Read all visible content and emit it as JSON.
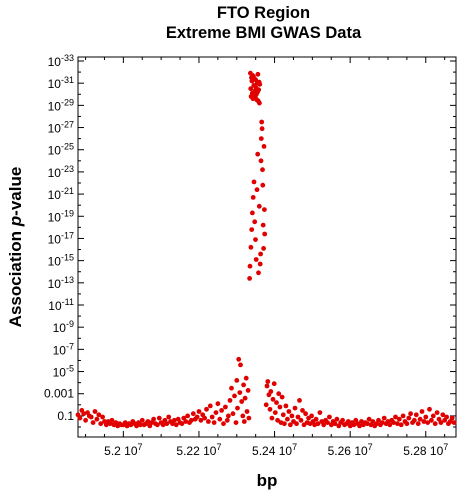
{
  "chart_data": {
    "type": "scatter",
    "title": "FTO Region",
    "subtitle": "Extreme BMI GWAS Data",
    "xlabel": "bp",
    "ylabel_main": "Association ",
    "ylabel_italic": "p",
    "ylabel_tail": "-value",
    "y_scale": "log",
    "xlim": [
      51880000,
      52880000
    ],
    "ylim_exponent": [
      -33,
      0
    ],
    "x_ticks": [
      {
        "value": 52000000,
        "mantissa": "5.2",
        "exp": "7"
      },
      {
        "value": 52200000,
        "mantissa": "5.22",
        "exp": "7"
      },
      {
        "value": 52400000,
        "mantissa": "5.24",
        "exp": "7"
      },
      {
        "value": 52600000,
        "mantissa": "5.26",
        "exp": "7"
      },
      {
        "value": 52800000,
        "mantissa": "5.28",
        "exp": "7"
      }
    ],
    "y_ticks": [
      {
        "exp": -33,
        "label": "10",
        "sup": "-33"
      },
      {
        "exp": -31,
        "label": "10",
        "sup": "-31"
      },
      {
        "exp": -29,
        "label": "10",
        "sup": "-29"
      },
      {
        "exp": -27,
        "label": "10",
        "sup": "-27"
      },
      {
        "exp": -25,
        "label": "10",
        "sup": "-25"
      },
      {
        "exp": -23,
        "label": "10",
        "sup": "-23"
      },
      {
        "exp": -21,
        "label": "10",
        "sup": "-21"
      },
      {
        "exp": -19,
        "label": "10",
        "sup": "-19"
      },
      {
        "exp": -17,
        "label": "10",
        "sup": "-17"
      },
      {
        "exp": -15,
        "label": "10",
        "sup": "-15"
      },
      {
        "exp": -13,
        "label": "10",
        "sup": "-13"
      },
      {
        "exp": -11,
        "label": "10",
        "sup": "-11"
      },
      {
        "exp": -9,
        "label": "10",
        "sup": "-9"
      },
      {
        "exp": -7,
        "label": "10",
        "sup": "-7"
      },
      {
        "exp": -5,
        "label": "10",
        "sup": "-5"
      },
      {
        "exp": -3,
        "label": "0.001",
        "sup": ""
      },
      {
        "exp": -1,
        "label": "0.1",
        "sup": ""
      }
    ],
    "point_color": "#e00000",
    "grid": false,
    "series": [
      {
        "points": [
          [
            51880000,
            -1.1
          ],
          [
            51885000,
            -0.8
          ],
          [
            51890000,
            -1.5
          ],
          [
            51895000,
            -1.2
          ],
          [
            51900000,
            -0.6
          ],
          [
            51905000,
            -1.3
          ],
          [
            51910000,
            -1.0
          ],
          [
            51915000,
            -0.9
          ],
          [
            51920000,
            -0.4
          ],
          [
            51925000,
            -1.4
          ],
          [
            51930000,
            -0.7
          ],
          [
            51935000,
            -1.1
          ],
          [
            51940000,
            -0.3
          ],
          [
            51945000,
            -0.9
          ],
          [
            51950000,
            -0.5
          ],
          [
            51955000,
            -0.2
          ],
          [
            51960000,
            -0.5
          ],
          [
            51965000,
            -0.3
          ],
          [
            51970000,
            -0.6
          ],
          [
            51975000,
            -0.2
          ],
          [
            51980000,
            -0.4
          ],
          [
            51985000,
            -0.1
          ],
          [
            51990000,
            -0.3
          ],
          [
            51995000,
            -0.2
          ],
          [
            52000000,
            -0.2
          ],
          [
            52005000,
            -0.4
          ],
          [
            52010000,
            -0.1
          ],
          [
            52015000,
            -0.3
          ],
          [
            52020000,
            -0.2
          ],
          [
            52025000,
            -0.5
          ],
          [
            52030000,
            -0.3
          ],
          [
            52035000,
            -0.1
          ],
          [
            52040000,
            -0.4
          ],
          [
            52045000,
            -0.2
          ],
          [
            52050000,
            -0.6
          ],
          [
            52055000,
            -0.2
          ],
          [
            52060000,
            -0.3
          ],
          [
            52065000,
            -0.5
          ],
          [
            52070000,
            -0.1
          ],
          [
            52075000,
            -0.4
          ],
          [
            52080000,
            -0.7
          ],
          [
            52085000,
            -0.3
          ],
          [
            52090000,
            -0.2
          ],
          [
            52095000,
            -0.8
          ],
          [
            52100000,
            -0.4
          ],
          [
            52105000,
            -0.2
          ],
          [
            52110000,
            -0.6
          ],
          [
            52115000,
            -0.3
          ],
          [
            52120000,
            -0.9
          ],
          [
            52125000,
            -0.5
          ],
          [
            52130000,
            -0.3
          ],
          [
            52135000,
            -0.6
          ],
          [
            52140000,
            -0.2
          ],
          [
            52145000,
            -0.7
          ],
          [
            52150000,
            -0.4
          ],
          [
            52155000,
            -0.3
          ],
          [
            52160000,
            -0.8
          ],
          [
            52165000,
            -0.5
          ],
          [
            52170000,
            -1.0
          ],
          [
            52175000,
            -0.4
          ],
          [
            52180000,
            -0.6
          ],
          [
            52185000,
            -1.2
          ],
          [
            52190000,
            -0.7
          ],
          [
            52195000,
            -0.9
          ],
          [
            52200000,
            -1.4
          ],
          [
            52205000,
            -0.6
          ],
          [
            52210000,
            -1.1
          ],
          [
            52215000,
            -0.8
          ],
          [
            52220000,
            -1.6
          ],
          [
            52225000,
            -0.5
          ],
          [
            52230000,
            -1.9
          ],
          [
            52235000,
            -0.9
          ],
          [
            52240000,
            -0.4
          ],
          [
            52245000,
            -1.3
          ],
          [
            52250000,
            -2.1
          ],
          [
            52255000,
            -0.7
          ],
          [
            52260000,
            -1.5
          ],
          [
            52265000,
            -0.3
          ],
          [
            52270000,
            -1.8
          ],
          [
            52275000,
            -0.6
          ],
          [
            52278000,
            -1.0
          ],
          [
            52282000,
            -2.4
          ],
          [
            52286000,
            -3.5
          ],
          [
            52290000,
            -1.2
          ],
          [
            52294000,
            -2.8
          ],
          [
            52298000,
            -0.4
          ],
          [
            52300000,
            -4.2
          ],
          [
            52302000,
            -1.7
          ],
          [
            52305000,
            -6.1
          ],
          [
            52308000,
            -3.1
          ],
          [
            52310000,
            -5.6
          ],
          [
            52313000,
            -2.3
          ],
          [
            52316000,
            -1.0
          ],
          [
            52318000,
            -3.8
          ],
          [
            52320000,
            -0.5
          ],
          [
            52322000,
            -2.6
          ],
          [
            52325000,
            -4.4
          ],
          [
            52327000,
            -1.4
          ],
          [
            52330000,
            -3.3
          ],
          [
            52332000,
            -0.8
          ],
          [
            52334000,
            -13.4
          ],
          [
            52336000,
            -31.9
          ],
          [
            52337000,
            -30.5
          ],
          [
            52338000,
            -29.8
          ],
          [
            52339000,
            -31.5
          ],
          [
            52340000,
            -31.2
          ],
          [
            52341000,
            -30.1
          ],
          [
            52342000,
            -31.7
          ],
          [
            52343000,
            -29.6
          ],
          [
            52344000,
            -31.6
          ],
          [
            52345000,
            -30.8
          ],
          [
            52346000,
            -29.9
          ],
          [
            52347000,
            -31.4
          ],
          [
            52348000,
            -30.3
          ],
          [
            52349000,
            -29.7
          ],
          [
            52350000,
            -31.3
          ],
          [
            52351000,
            -30.6
          ],
          [
            52352000,
            -30.0
          ],
          [
            52353000,
            -29.5
          ],
          [
            52354000,
            -31.0
          ],
          [
            52355000,
            -30.2
          ],
          [
            52356000,
            -31.8
          ],
          [
            52357000,
            -29.4
          ],
          [
            52358000,
            -30.4
          ],
          [
            52359000,
            -31.1
          ],
          [
            52360000,
            -29.2
          ],
          [
            52361000,
            -30.9
          ],
          [
            52335000,
            -14.5
          ],
          [
            52337500,
            -16.2
          ],
          [
            52339500,
            -17.8
          ],
          [
            52341500,
            -19.3
          ],
          [
            52343500,
            -20.7
          ],
          [
            52345500,
            -22.1
          ],
          [
            52347500,
            -18.5
          ],
          [
            52349500,
            -16.9
          ],
          [
            52351500,
            -15.1
          ],
          [
            52353500,
            -21.4
          ],
          [
            52355500,
            -24.6
          ],
          [
            52357500,
            -13.9
          ],
          [
            52359500,
            -19.9
          ],
          [
            52362000,
            -14.7
          ],
          [
            52363000,
            -15.6
          ],
          [
            52364000,
            -24.0
          ],
          [
            52365000,
            -26.0
          ],
          [
            52366000,
            -27.5
          ],
          [
            52367000,
            -26.9
          ],
          [
            52368000,
            -23.2
          ],
          [
            52369000,
            -21.8
          ],
          [
            52370000,
            -18.2
          ],
          [
            52371000,
            -16.1
          ],
          [
            52372000,
            -25.3
          ],
          [
            52373000,
            -19.6
          ],
          [
            52374000,
            -17.4
          ],
          [
            52378000,
            -2.0
          ],
          [
            52380000,
            -3.7
          ],
          [
            52382000,
            -4.1
          ],
          [
            52385000,
            -2.9
          ],
          [
            52388000,
            -1.6
          ],
          [
            52390000,
            -3.2
          ],
          [
            52393000,
            -0.8
          ],
          [
            52396000,
            -2.5
          ],
          [
            52399000,
            -3.9
          ],
          [
            52402000,
            -1.3
          ],
          [
            52405000,
            -2.2
          ],
          [
            52408000,
            -0.6
          ],
          [
            52411000,
            -3.0
          ],
          [
            52414000,
            -1.8
          ],
          [
            52417000,
            -0.4
          ],
          [
            52420000,
            -2.7
          ],
          [
            52423000,
            -1.1
          ],
          [
            52426000,
            -0.3
          ],
          [
            52430000,
            -1.9
          ],
          [
            52434000,
            -0.7
          ],
          [
            52438000,
            -1.4
          ],
          [
            52442000,
            -0.2
          ],
          [
            52446000,
            -1.0
          ],
          [
            52450000,
            -0.5
          ],
          [
            52454000,
            -1.7
          ],
          [
            52458000,
            -0.3
          ],
          [
            52462000,
            -0.9
          ],
          [
            52466000,
            -2.4
          ],
          [
            52470000,
            -0.6
          ],
          [
            52474000,
            -1.5
          ],
          [
            52478000,
            -0.2
          ],
          [
            52482000,
            -1.2
          ],
          [
            52486000,
            -0.4
          ],
          [
            52490000,
            -0.8
          ],
          [
            52494000,
            -0.3
          ],
          [
            52498000,
            -1.0
          ],
          [
            52502000,
            -0.5
          ],
          [
            52506000,
            -0.2
          ],
          [
            52510000,
            -0.7
          ],
          [
            52515000,
            -0.3
          ],
          [
            52520000,
            -1.3
          ],
          [
            52525000,
            -0.5
          ],
          [
            52530000,
            -0.2
          ],
          [
            52535000,
            -0.6
          ],
          [
            52540000,
            -0.4
          ],
          [
            52545000,
            -0.9
          ],
          [
            52550000,
            -0.2
          ],
          [
            52555000,
            -0.5
          ],
          [
            52560000,
            -0.3
          ],
          [
            52565000,
            -0.7
          ],
          [
            52570000,
            -0.1
          ],
          [
            52575000,
            -0.4
          ],
          [
            52580000,
            -0.6
          ],
          [
            52585000,
            -0.2
          ],
          [
            52590000,
            -0.3
          ],
          [
            52595000,
            -0.5
          ],
          [
            52600000,
            -0.1
          ],
          [
            52605000,
            -0.4
          ],
          [
            52610000,
            -0.2
          ],
          [
            52615000,
            -0.6
          ],
          [
            52620000,
            -0.3
          ],
          [
            52625000,
            -0.1
          ],
          [
            52630000,
            -0.5
          ],
          [
            52635000,
            -0.2
          ],
          [
            52640000,
            -0.4
          ],
          [
            52645000,
            -0.3
          ],
          [
            52650000,
            -0.7
          ],
          [
            52655000,
            -0.2
          ],
          [
            52660000,
            -0.5
          ],
          [
            52665000,
            -0.1
          ],
          [
            52670000,
            -0.3
          ],
          [
            52675000,
            -0.6
          ],
          [
            52680000,
            -0.2
          ],
          [
            52685000,
            -0.4
          ],
          [
            52690000,
            -0.8
          ],
          [
            52695000,
            -0.3
          ],
          [
            52700000,
            -0.5
          ],
          [
            52705000,
            -0.2
          ],
          [
            52710000,
            -0.6
          ],
          [
            52715000,
            -0.4
          ],
          [
            52720000,
            -0.9
          ],
          [
            52725000,
            -0.3
          ],
          [
            52730000,
            -0.7
          ],
          [
            52735000,
            -0.2
          ],
          [
            52740000,
            -1.0
          ],
          [
            52745000,
            -0.5
          ],
          [
            52750000,
            -0.3
          ],
          [
            52755000,
            -0.8
          ],
          [
            52760000,
            -1.2
          ],
          [
            52765000,
            -0.4
          ],
          [
            52770000,
            -0.6
          ],
          [
            52775000,
            -1.1
          ],
          [
            52780000,
            -0.3
          ],
          [
            52785000,
            -0.7
          ],
          [
            52790000,
            -1.4
          ],
          [
            52795000,
            -0.5
          ],
          [
            52800000,
            -0.9
          ],
          [
            52805000,
            -0.4
          ],
          [
            52810000,
            -1.6
          ],
          [
            52815000,
            -0.6
          ],
          [
            52820000,
            -1.0
          ],
          [
            52825000,
            -0.3
          ],
          [
            52830000,
            -1.3
          ],
          [
            52835000,
            -0.7
          ],
          [
            52840000,
            -0.4
          ],
          [
            52845000,
            -1.1
          ],
          [
            52850000,
            -0.6
          ],
          [
            52855000,
            -0.9
          ],
          [
            52860000,
            -0.3
          ],
          [
            52865000,
            -0.5
          ],
          [
            52870000,
            -0.8
          ],
          [
            52875000,
            -0.4
          ]
        ]
      }
    ]
  }
}
